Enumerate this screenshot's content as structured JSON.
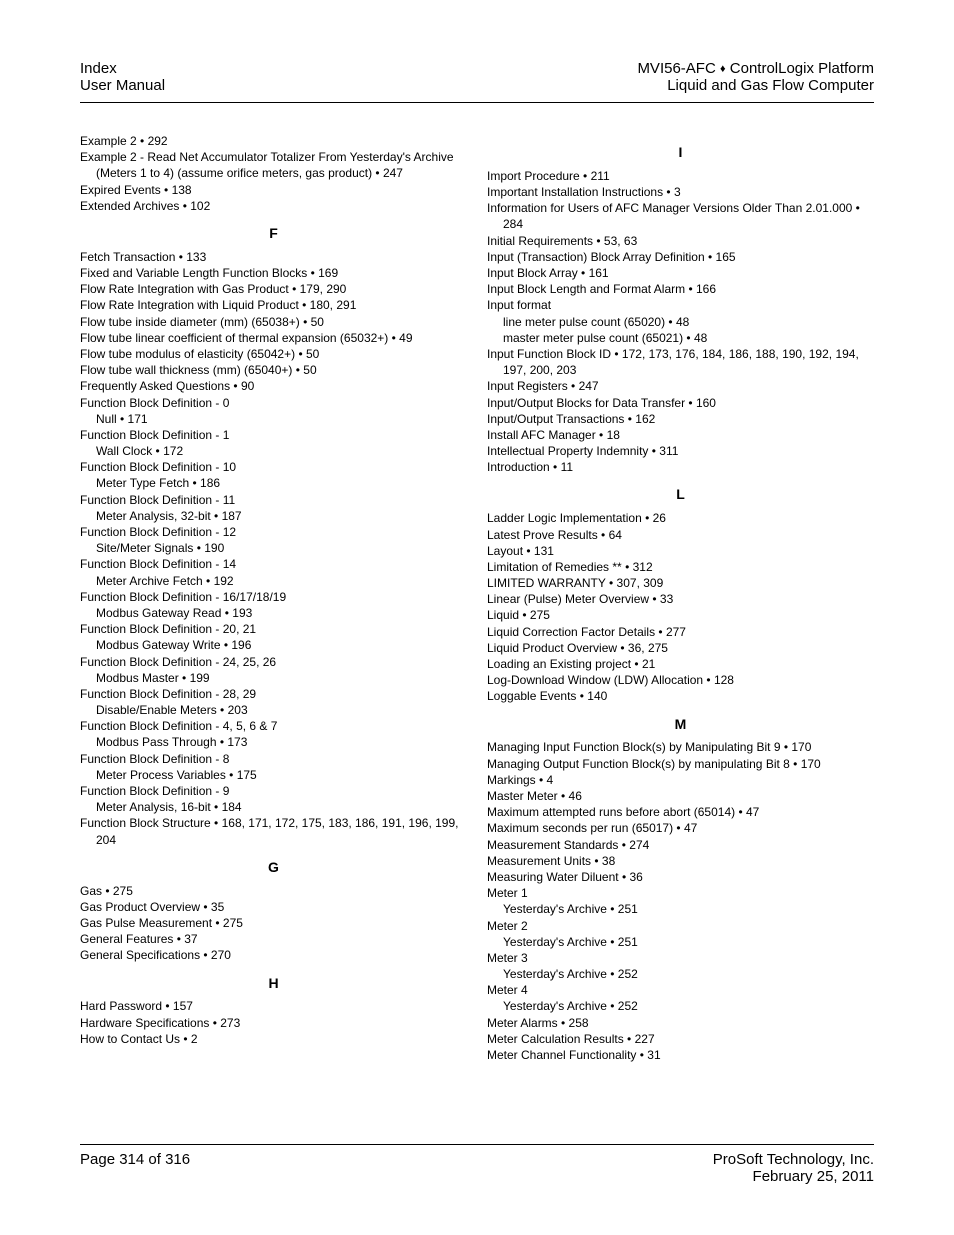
{
  "header": {
    "left_line1": "Index",
    "left_line2": "User Manual",
    "right_line1_a": "MVI56-AFC",
    "right_line1_b": "ControlLogix Platform",
    "right_line2": "Liquid and Gas Flow Computer"
  },
  "footer": {
    "page": "Page 314 of 316",
    "company": "ProSoft Technology, Inc.",
    "date": "February 25, 2011"
  },
  "left_col": {
    "pre": [
      "Example 2 • 292",
      "Example 2 - Read Net Accumulator Totalizer From Yesterday's Archive (Meters 1 to 4) (assume orifice meters, gas product) • 247",
      "Expired Events • 138",
      "Extended Archives • 102"
    ],
    "F": {
      "letter": "F",
      "items": [
        {
          "t": "Fetch Transaction • 133"
        },
        {
          "t": "Fixed and Variable Length Function Blocks • 169"
        },
        {
          "t": "Flow Rate Integration with Gas Product • 179, 290"
        },
        {
          "t": "Flow Rate Integration with Liquid Product • 180, 291"
        },
        {
          "t": "Flow tube inside diameter (mm) (65038+) • 50"
        },
        {
          "t": "Flow tube linear coefficient of thermal expansion (65032+) • 49"
        },
        {
          "t": "Flow tube modulus of elasticity (65042+) • 50"
        },
        {
          "t": "Flow tube wall thickness (mm) (65040+) • 50"
        },
        {
          "t": "Frequently Asked Questions • 90"
        },
        {
          "t": "Function Block Definition - 0"
        },
        {
          "t": "Null • 171",
          "sub": true
        },
        {
          "t": "Function Block Definition - 1"
        },
        {
          "t": "Wall Clock • 172",
          "sub": true
        },
        {
          "t": "Function Block Definition - 10"
        },
        {
          "t": "Meter Type Fetch • 186",
          "sub": true
        },
        {
          "t": "Function Block Definition - 11"
        },
        {
          "t": "Meter Analysis, 32-bit • 187",
          "sub": true
        },
        {
          "t": "Function Block Definition - 12"
        },
        {
          "t": "Site/Meter Signals • 190",
          "sub": true
        },
        {
          "t": "Function Block Definition - 14"
        },
        {
          "t": "Meter Archive Fetch • 192",
          "sub": true
        },
        {
          "t": "Function Block Definition - 16/17/18/19"
        },
        {
          "t": "Modbus Gateway Read • 193",
          "sub": true
        },
        {
          "t": "Function Block Definition - 20, 21"
        },
        {
          "t": "Modbus Gateway Write • 196",
          "sub": true
        },
        {
          "t": "Function Block Definition - 24, 25, 26"
        },
        {
          "t": "Modbus Master • 199",
          "sub": true
        },
        {
          "t": "Function Block Definition - 28, 29"
        },
        {
          "t": "Disable/Enable Meters • 203",
          "sub": true
        },
        {
          "t": "Function Block Definition - 4, 5, 6 & 7"
        },
        {
          "t": "Modbus Pass Through • 173",
          "sub": true
        },
        {
          "t": "Function Block Definition - 8"
        },
        {
          "t": "Meter Process Variables • 175",
          "sub": true
        },
        {
          "t": "Function Block Definition - 9"
        },
        {
          "t": "Meter Analysis, 16-bit • 184",
          "sub": true
        },
        {
          "t": "Function Block Structure • 168, 171, 172, 175, 183, 186, 191, 196, 199, 204"
        }
      ]
    },
    "G": {
      "letter": "G",
      "items": [
        {
          "t": "Gas • 275"
        },
        {
          "t": "Gas Product Overview • 35"
        },
        {
          "t": "Gas Pulse Measurement • 275"
        },
        {
          "t": "General Features • 37"
        },
        {
          "t": "General Specifications • 270"
        }
      ]
    },
    "H": {
      "letter": "H",
      "items": [
        {
          "t": "Hard Password • 157"
        },
        {
          "t": "Hardware Specifications • 273"
        },
        {
          "t": "How to Contact Us • 2"
        }
      ]
    }
  },
  "right_col": {
    "I": {
      "letter": "I",
      "items": [
        {
          "t": "Import Procedure • 211"
        },
        {
          "t": "Important Installation Instructions • 3"
        },
        {
          "t": "Information for Users of AFC Manager Versions Older Than 2.01.000 • 284"
        },
        {
          "t": "Initial Requirements • 53, 63"
        },
        {
          "t": "Input (Transaction) Block Array Definition • 165"
        },
        {
          "t": "Input Block Array • 161"
        },
        {
          "t": "Input Block Length and Format Alarm • 166"
        },
        {
          "t": "Input format"
        },
        {
          "t": "line meter pulse count (65020) • 48",
          "sub": true
        },
        {
          "t": "master meter pulse count (65021) • 48",
          "sub": true
        },
        {
          "t": "Input Function Block ID • 172, 173, 176, 184, 186, 188, 190, 192, 194, 197, 200, 203"
        },
        {
          "t": "Input Registers • 247"
        },
        {
          "t": "Input/Output Blocks for Data Transfer • 160"
        },
        {
          "t": "Input/Output Transactions • 162"
        },
        {
          "t": "Install AFC Manager • 18"
        },
        {
          "t": "Intellectual Property Indemnity • 311"
        },
        {
          "t": "Introduction • 11"
        }
      ]
    },
    "L": {
      "letter": "L",
      "items": [
        {
          "t": "Ladder Logic Implementation • 26"
        },
        {
          "t": "Latest Prove Results • 64"
        },
        {
          "t": "Layout • 131"
        },
        {
          "t": "Limitation of Remedies ** • 312"
        },
        {
          "t": "LIMITED WARRANTY • 307, 309"
        },
        {
          "t": "Linear (Pulse) Meter Overview • 33"
        },
        {
          "t": "Liquid • 275"
        },
        {
          "t": "Liquid Correction Factor Details • 277"
        },
        {
          "t": "Liquid Product Overview • 36, 275"
        },
        {
          "t": "Loading an Existing project • 21"
        },
        {
          "t": "Log-Download Window (LDW) Allocation • 128"
        },
        {
          "t": "Loggable Events • 140"
        }
      ]
    },
    "M": {
      "letter": "M",
      "items": [
        {
          "t": "Managing Input Function Block(s) by Manipulating Bit 9 • 170"
        },
        {
          "t": "Managing Output Function Block(s) by manipulating Bit 8 • 170"
        },
        {
          "t": "Markings • 4"
        },
        {
          "t": "Master Meter • 46"
        },
        {
          "t": "Maximum attempted runs before abort (65014) • 47"
        },
        {
          "t": "Maximum seconds per run (65017) • 47"
        },
        {
          "t": "Measurement Standards • 274"
        },
        {
          "t": "Measurement Units • 38"
        },
        {
          "t": "Measuring Water Diluent • 36"
        },
        {
          "t": "Meter 1"
        },
        {
          "t": "Yesterday's Archive • 251",
          "sub": true
        },
        {
          "t": "Meter 2"
        },
        {
          "t": "Yesterday's Archive • 251",
          "sub": true
        },
        {
          "t": "Meter 3"
        },
        {
          "t": "Yesterday's Archive • 252",
          "sub": true
        },
        {
          "t": "Meter 4"
        },
        {
          "t": "Yesterday's Archive • 252",
          "sub": true
        },
        {
          "t": "Meter Alarms • 258"
        },
        {
          "t": "Meter Calculation Results • 227"
        },
        {
          "t": "Meter Channel Functionality • 31"
        }
      ]
    }
  }
}
